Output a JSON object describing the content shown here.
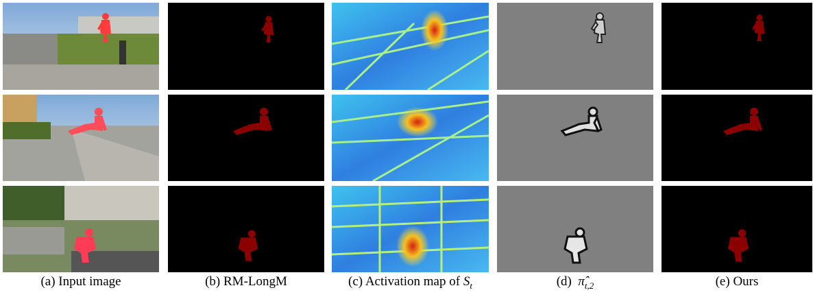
{
  "figure": {
    "captions": [
      {
        "label": "(a)",
        "text": "Input image"
      },
      {
        "label": "(b)",
        "text": "RM-LongM"
      },
      {
        "label": "(c)",
        "text": "Activation map of",
        "math": {
          "base": "S",
          "sub": "t"
        }
      },
      {
        "label": "(d)",
        "math": {
          "base": "π̂",
          "sub": "t,2"
        }
      },
      {
        "label": "(e)",
        "text": "Ours"
      }
    ]
  }
}
